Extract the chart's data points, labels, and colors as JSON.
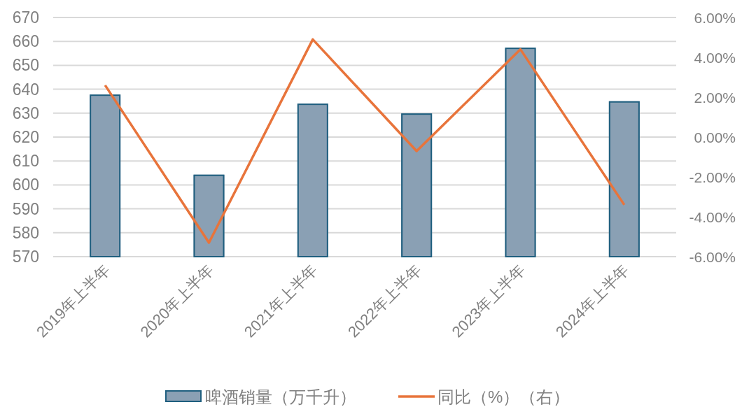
{
  "chart_data": {
    "type": "bar",
    "categories": [
      "2019年上半年",
      "2020年上半年",
      "2021年上半年",
      "2022年上半年",
      "2023年上半年",
      "2024年上半年"
    ],
    "series": [
      {
        "name": "啤酒销量（万千升）",
        "color": "#8aa0b4",
        "values": [
          637.5,
          604,
          633.7,
          629.6,
          657.1,
          634.7
        ]
      },
      {
        "name": "同比（%）（右）",
        "type": "line",
        "axis": "y2",
        "color": "#e8743b",
        "values": [
          2.6,
          -5.3,
          4.9,
          -0.7,
          4.4,
          -3.4
        ]
      }
    ],
    "ylim": [
      570,
      670
    ],
    "yticks": [
      570,
      580,
      590,
      600,
      610,
      620,
      630,
      640,
      650,
      660,
      670
    ],
    "y2lim": [
      -6,
      6
    ],
    "y2ticks": [
      {
        "value": -6,
        "label": "-6.00%"
      },
      {
        "value": -4,
        "label": "-4.00%"
      },
      {
        "value": -2,
        "label": "-2.00%"
      },
      {
        "value": 0,
        "label": "0.00%"
      },
      {
        "value": 2,
        "label": "2.00%"
      },
      {
        "value": 4,
        "label": "4.00%"
      },
      {
        "value": 6,
        "label": "6.00%"
      }
    ],
    "grid": "y",
    "legend": "bottom"
  }
}
